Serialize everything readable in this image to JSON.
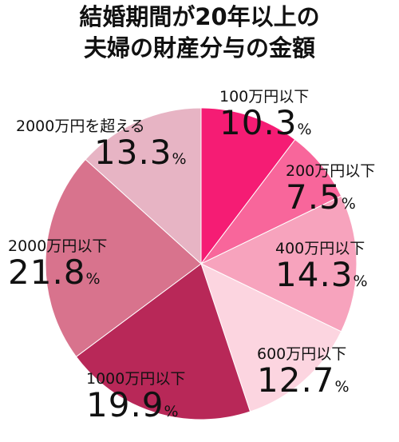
{
  "title_line1": "結婚期間が20年以上の",
  "title_line2": "夫婦の財産分与の金額",
  "chart_data": {
    "type": "pie",
    "title": "結婚期間が20年以上の夫婦の財産分与の金額",
    "unit": "%",
    "slices": [
      {
        "label": "100万円以下",
        "value": 10.3,
        "display": "10.3",
        "color": "#f51c74"
      },
      {
        "label": "200万円以下",
        "value": 7.5,
        "display": "7.5",
        "color": "#f8669b"
      },
      {
        "label": "400万円以下",
        "value": 14.3,
        "display": "14.3",
        "color": "#f7a3bd"
      },
      {
        "label": "600万円以下",
        "value": 12.7,
        "display": "12.7",
        "color": "#fcd5e0"
      },
      {
        "label": "1000万円以下",
        "value": 19.9,
        "display": "19.9",
        "color": "#b82858"
      },
      {
        "label": "2000万円以下",
        "value": 21.8,
        "display": "21.8",
        "color": "#d8738d"
      },
      {
        "label": "2000万円を超える",
        "value": 13.3,
        "display": "13.3",
        "color": "#e7b4c4"
      }
    ]
  }
}
